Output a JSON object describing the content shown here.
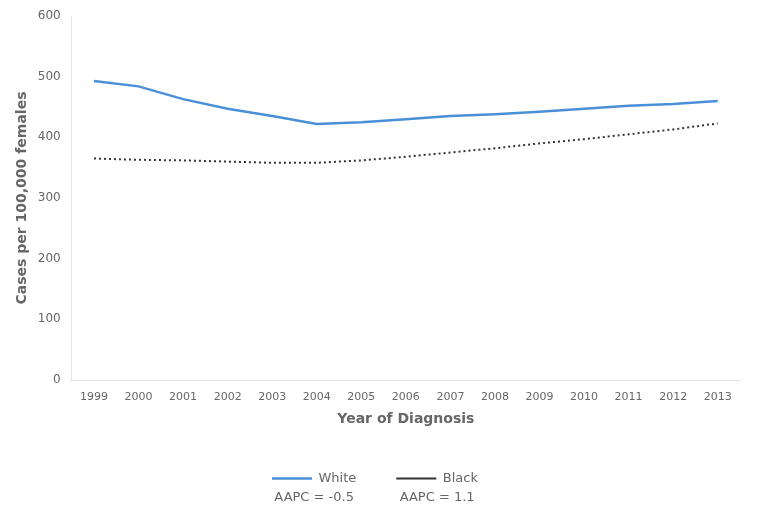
{
  "chart_data": {
    "type": "line",
    "x": [
      1999,
      2000,
      2001,
      2002,
      2003,
      2004,
      2005,
      2006,
      2007,
      2008,
      2009,
      2010,
      2011,
      2012,
      2013
    ],
    "series": [
      {
        "name": "White",
        "color": "#4a90d9",
        "line_style": "solid",
        "values": [
          493,
          484,
          463,
          447,
          435,
          422,
          425,
          430,
          435,
          438,
          442,
          447,
          452,
          455,
          460
        ]
      },
      {
        "name": "Black",
        "color": "#333333",
        "line_style": "dotted",
        "values": [
          365,
          363,
          362,
          360,
          358,
          358,
          362,
          368,
          375,
          382,
          390,
          397,
          405,
          413,
          423
        ]
      }
    ],
    "x_label": "Year of Diagnosis",
    "y_label": "Cases per 100,000 females",
    "xlim": [
      1998.5,
      2013.5
    ],
    "xticks": [
      1999,
      2000,
      2001,
      2002,
      2003,
      2004,
      2005,
      2006,
      2007,
      2008,
      2009,
      2010,
      2011,
      2012,
      2013
    ],
    "ylim": [
      0,
      600
    ],
    "yticks": [
      0,
      100,
      200,
      300,
      400,
      500,
      600
    ],
    "annotations": [
      "AAPC = -0.5",
      "AAPC = 1.1"
    ],
    "grid": false,
    "legend": "bottom"
  }
}
